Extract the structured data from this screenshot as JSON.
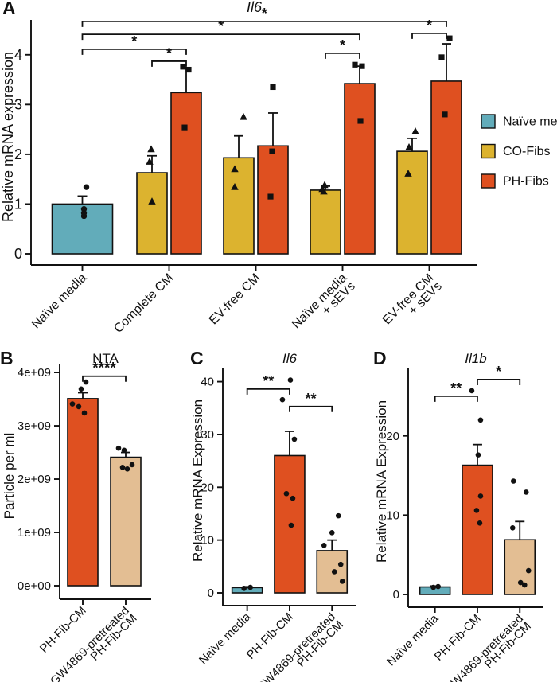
{
  "colors": {
    "teal": "#62ACBA",
    "yellow": "#DCB32F",
    "orange": "#DF5020",
    "tan": "#E3BE93",
    "ink": "#111111",
    "background": "#FFFFFF"
  },
  "chart_data": [
    {
      "type": "grouped_bar",
      "label": "A",
      "title": "Il6",
      "title_italic": true,
      "ylabel": "Relative mRNA expression",
      "ylim": [
        0,
        4.7
      ],
      "grid": false,
      "legend_position": "right",
      "yticks": [
        {
          "v": 0,
          "label": "0"
        },
        {
          "v": 1,
          "label": "1"
        },
        {
          "v": 2,
          "label": "2"
        },
        {
          "v": 3,
          "label": "3"
        },
        {
          "v": 4,
          "label": "4"
        }
      ],
      "categories": [
        {
          "lines": [
            "Naïve media"
          ]
        },
        {
          "lines": [
            "Complete CM"
          ]
        },
        {
          "lines": [
            "EV-free CM"
          ]
        },
        {
          "lines": [
            "Naïve media",
            "+ sEVs"
          ]
        },
        {
          "lines": [
            "EV-free CM",
            "+ sEVs"
          ]
        }
      ],
      "series": [
        {
          "name": "Naïve media",
          "color_key": "teal",
          "marker": "circle",
          "values": [
            1.0,
            null,
            null,
            null,
            null
          ],
          "errors": [
            0.16,
            null,
            null,
            null,
            null
          ],
          "points": [
            [
              [
                1.34,
                5
              ],
              [
                0.9,
                2
              ],
              [
                0.82,
                2
              ],
              [
                0.76,
                2
              ]
            ],
            [],
            [],
            [],
            []
          ]
        },
        {
          "name": "CO-Fibs",
          "color_key": "yellow",
          "marker": "triangle",
          "values": [
            null,
            1.63,
            1.93,
            1.28,
            2.06
          ],
          "errors": [
            null,
            0.34,
            0.44,
            0.08,
            0.26
          ],
          "points": [
            [],
            [
              [
                2.1,
                -1
              ],
              [
                1.85,
                -3
              ],
              [
                1.05,
                0
              ]
            ],
            [
              [
                2.75,
                6
              ],
              [
                1.7,
                -5
              ],
              [
                1.34,
                -5
              ]
            ],
            [
              [
                1.38,
                -1
              ],
              [
                1.3,
                -4
              ],
              [
                1.25,
                -2
              ]
            ],
            [
              [
                2.46,
                4
              ],
              [
                2.14,
                -4
              ],
              [
                1.61,
                -5
              ]
            ]
          ]
        },
        {
          "name": "PH-Fibs",
          "color_key": "orange",
          "marker": "square",
          "values": [
            null,
            3.24,
            2.17,
            3.42,
            3.47
          ],
          "errors": [
            null,
            0.48,
            0.66,
            0.35,
            0.75
          ],
          "points": [
            [],
            [
              [
                3.76,
                -4
              ],
              [
                3.7,
                3
              ],
              [
                2.54,
                -2
              ]
            ],
            [
              [
                3.35,
                0
              ],
              [
                2.06,
                -1
              ],
              [
                1.15,
                -3
              ]
            ],
            [
              [
                3.8,
                -6
              ],
              [
                3.77,
                3
              ],
              [
                2.67,
                1
              ]
            ],
            [
              [
                4.33,
                4
              ],
              [
                3.95,
                -6
              ],
              [
                2.8,
                -2
              ]
            ]
          ]
        }
      ],
      "brackets": [
        {
          "a": [
            0,
            0
          ],
          "b": [
            4,
            2
          ],
          "y": 4.67,
          "label": "*"
        },
        {
          "a": [
            0,
            0
          ],
          "b": [
            3,
            2
          ],
          "y": 4.41,
          "label": "*"
        },
        {
          "a": [
            0,
            0
          ],
          "b": [
            1,
            2
          ],
          "y": 4.11,
          "label": "*"
        },
        {
          "a": [
            1,
            1
          ],
          "b": [
            1,
            2
          ],
          "y": 3.87,
          "label": "*"
        },
        {
          "a": [
            3,
            1
          ],
          "b": [
            3,
            2
          ],
          "y": 4.03,
          "label": "*"
        },
        {
          "a": [
            4,
            1
          ],
          "b": [
            4,
            2
          ],
          "y": 4.43,
          "label": "*"
        }
      ],
      "legend": {
        "items": [
          {
            "label": "Naïve media",
            "color_key": "teal"
          },
          {
            "label": "CO-Fibs",
            "color_key": "yellow"
          },
          {
            "label": "PH-Fibs",
            "color_key": "orange"
          }
        ]
      }
    },
    {
      "type": "bar",
      "label": "B",
      "title": "NTA",
      "title_italic": false,
      "ylabel": "Particle per ml",
      "y_values_unit": "1e9 particles per ml",
      "ylim": [
        0,
        4.15
      ],
      "grid": false,
      "yticks": [
        {
          "v": 0,
          "label": "0e+00"
        },
        {
          "v": 1,
          "label": "1e+09"
        },
        {
          "v": 2,
          "label": "2e+09"
        },
        {
          "v": 3,
          "label": "3e+09"
        },
        {
          "v": 4,
          "label": "4e+09"
        }
      ],
      "categories": [
        {
          "lines": [
            "PH-Fib-CM"
          ]
        },
        {
          "lines": [
            "GW4869-pretreated",
            "PH-Fib-CM"
          ]
        }
      ],
      "series": [
        {
          "color_keys": [
            "orange",
            "tan"
          ],
          "marker": "circle",
          "values": [
            3.51,
            2.41
          ],
          "errors": [
            0.11,
            0.09
          ],
          "points": [
            [
              [
                3.82,
                4
              ],
              [
                3.69,
                -2
              ],
              [
                3.41,
                -13
              ],
              [
                3.36,
                -5
              ],
              [
                3.24,
                2
              ]
            ],
            [
              [
                2.58,
                -9
              ],
              [
                2.54,
                -2
              ],
              [
                2.27,
                8
              ],
              [
                2.22,
                -4
              ],
              [
                2.19,
                2
              ]
            ]
          ]
        }
      ],
      "brackets": [
        {
          "a": [
            0,
            0
          ],
          "b": [
            1,
            0
          ],
          "y": 3.93,
          "label": "****"
        }
      ]
    },
    {
      "type": "bar",
      "label": "C",
      "title": "Il6",
      "title_italic": true,
      "ylabel": "Relative mRNA Expression",
      "ylim": [
        0,
        42.5
      ],
      "grid": false,
      "yticks": [
        {
          "v": 0,
          "label": "0"
        },
        {
          "v": 10,
          "label": "10"
        },
        {
          "v": 20,
          "label": "20"
        },
        {
          "v": 30,
          "label": "30"
        },
        {
          "v": 40,
          "label": "40"
        }
      ],
      "categories": [
        {
          "lines": [
            "Naïve media"
          ]
        },
        {
          "lines": [
            "PH-Fib-CM"
          ]
        },
        {
          "lines": [
            "GW4869-pretreated",
            "PH-Fib-CM"
          ]
        }
      ],
      "series": [
        {
          "color_keys": [
            "teal",
            "orange",
            "tan"
          ],
          "marker": "circle",
          "values": [
            1.0,
            26.0,
            8.0
          ],
          "errors": [
            0.16,
            4.6,
            2.0
          ],
          "points": [
            [
              [
                0.85,
                -4
              ],
              [
                1.05,
                4
              ]
            ],
            [
              [
                40.3,
                1
              ],
              [
                36.6,
                -9
              ],
              [
                29.1,
                6
              ],
              [
                18.8,
                -4
              ],
              [
                17.9,
                4
              ],
              [
                12.8,
                2
              ]
            ],
            [
              [
                14.6,
                8
              ],
              [
                11.4,
                0
              ],
              [
                9.0,
                -10
              ],
              [
                5.4,
                11
              ],
              [
                4.0,
                3
              ],
              [
                2.2,
                13
              ]
            ]
          ]
        }
      ],
      "brackets": [
        {
          "a": [
            0,
            0
          ],
          "b": [
            1,
            0
          ],
          "y": 38.6,
          "label": "**"
        },
        {
          "a": [
            1,
            0
          ],
          "b": [
            2,
            0
          ],
          "y": 35.3,
          "label": "**"
        }
      ]
    },
    {
      "type": "bar",
      "label": "D",
      "title": "Il1b",
      "title_italic": true,
      "ylabel": "Relative mRNA Expression",
      "ylim": [
        0,
        28.5
      ],
      "grid": false,
      "yticks": [
        {
          "v": 0,
          "label": "0"
        },
        {
          "v": 10,
          "label": "10"
        },
        {
          "v": 20,
          "label": "20"
        }
      ],
      "categories": [
        {
          "lines": [
            "Naïve media"
          ]
        },
        {
          "lines": [
            "PH-Fib-CM"
          ]
        },
        {
          "lines": [
            "GW4869-pretreated",
            "PH-Fib-CM"
          ]
        }
      ],
      "series": [
        {
          "color_keys": [
            "teal",
            "orange",
            "tan"
          ],
          "marker": "circle",
          "values": [
            0.95,
            16.3,
            6.9
          ],
          "errors": [
            0.12,
            2.6,
            2.3
          ],
          "points": [
            [
              [
                0.9,
                -2
              ],
              [
                1.0,
                4
              ]
            ],
            [
              [
                25.7,
                -7
              ],
              [
                22.0,
                4
              ],
              [
                17.6,
                1
              ],
              [
                12.4,
                4
              ],
              [
                10.6,
                -1
              ],
              [
                9.0,
                3
              ]
            ],
            [
              [
                14.3,
                -8
              ],
              [
                12.9,
                8
              ],
              [
                8.4,
                -9
              ],
              [
                3.0,
                11
              ],
              [
                1.5,
                1
              ],
              [
                1.2,
                6
              ]
            ]
          ]
        }
      ],
      "brackets": [
        {
          "a": [
            0,
            0
          ],
          "b": [
            1,
            0
          ],
          "y": 25.0,
          "label": "**"
        },
        {
          "a": [
            1,
            0
          ],
          "b": [
            2,
            0
          ],
          "y": 27.1,
          "label": "*"
        }
      ]
    }
  ]
}
